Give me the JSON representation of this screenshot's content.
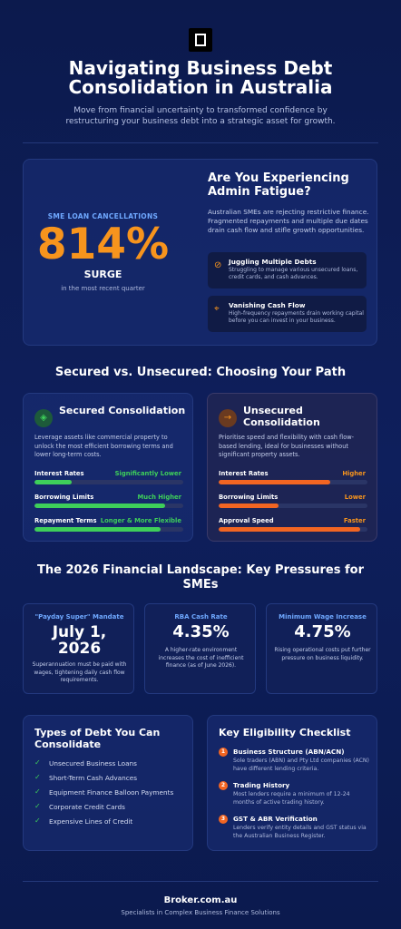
{
  "header": {
    "title": "Navigating Business Debt Consolidation in Australia",
    "subtitle": "Move from financial uncertainty to transformed confidence by restructuring your business debt into a strategic asset for growth."
  },
  "fatigue": {
    "stat_label": "SME LOAN CANCELLATIONS",
    "stat_value": "814%",
    "stat_caption": "SURGE",
    "stat_note": "in the most recent quarter",
    "title": "Are You Experiencing Admin Fatigue?",
    "text": "Australian SMEs are rejecting restrictive finance. Fragmented repayments and multiple due dates drain cash flow and stifle growth opportunities.",
    "items": [
      {
        "title": "Juggling Multiple Debts",
        "text": "Struggling to manage various unsecured loans, credit cards, and cash advances."
      },
      {
        "title": "Vanishing Cash Flow",
        "text": "High-frequency repayments drain working capital before you can invest in your business."
      }
    ]
  },
  "comparison": {
    "title": "Secured vs. Unsecured: Choosing Your Path",
    "cards": [
      {
        "title": "Secured Consolidation",
        "text": "Leverage assets like commercial property to unlock the most efficient borrowing terms and lower long-term costs.",
        "rows": [
          {
            "label": "Interest Rates",
            "rating": "Significantly Lower",
            "level": 25
          },
          {
            "label": "Borrowing Limits",
            "rating": "Much Higher",
            "level": 88
          },
          {
            "label": "Repayment Terms",
            "rating": "Longer & More Flexible",
            "level": 85
          }
        ]
      },
      {
        "title": "Unsecured Consolidation",
        "text": "Prioritise speed and flexibility with cash flow-based lending, ideal for businesses without significant property assets.",
        "rows": [
          {
            "label": "Interest Rates",
            "rating": "Higher",
            "level": 75
          },
          {
            "label": "Borrowing Limits",
            "rating": "Lower",
            "level": 40
          },
          {
            "label": "Approval Speed",
            "rating": "Faster",
            "level": 95
          }
        ]
      }
    ]
  },
  "landscape": {
    "title": "The 2026 Financial Landscape: Key Pressures for SMEs",
    "cards": [
      {
        "label": "\"Payday Super\" Mandate",
        "value": "July 1, 2026",
        "text": "Superannuation must be paid with wages, tightening daily cash flow requirements."
      },
      {
        "label": "RBA Cash Rate",
        "value": "4.35%",
        "text": "A higher-rate environment increases the cost of inefficient finance (as of June 2026)."
      },
      {
        "label": "Minimum Wage Increase",
        "value": "4.75%",
        "text": "Rising operational costs put further pressure on business liquidity."
      }
    ]
  },
  "debt_types": {
    "title": "Types of Debt You Can Consolidate",
    "items": [
      "Unsecured Business Loans",
      "Short-Term Cash Advances",
      "Equipment Finance Balloon Payments",
      "Corporate Credit Cards",
      "Expensive Lines of Credit"
    ]
  },
  "checklist": {
    "title": "Key Eligibility Checklist",
    "items": [
      {
        "number": "1",
        "title": "Business Structure (ABN/ACN)",
        "text": "Sole traders (ABN) and Pty Ltd companies (ACN) have different lending criteria."
      },
      {
        "number": "2",
        "title": "Trading History",
        "text": "Most lenders require a minimum of 12-24 months of active trading history."
      },
      {
        "number": "3",
        "title": "GST & ABR Verification",
        "text": "Lenders verify entity details and GST status via the Australian Business Register."
      }
    ]
  },
  "footer": {
    "brand": "Broker.com.au",
    "tagline": "Specialists in Complex Business Finance Solutions"
  }
}
